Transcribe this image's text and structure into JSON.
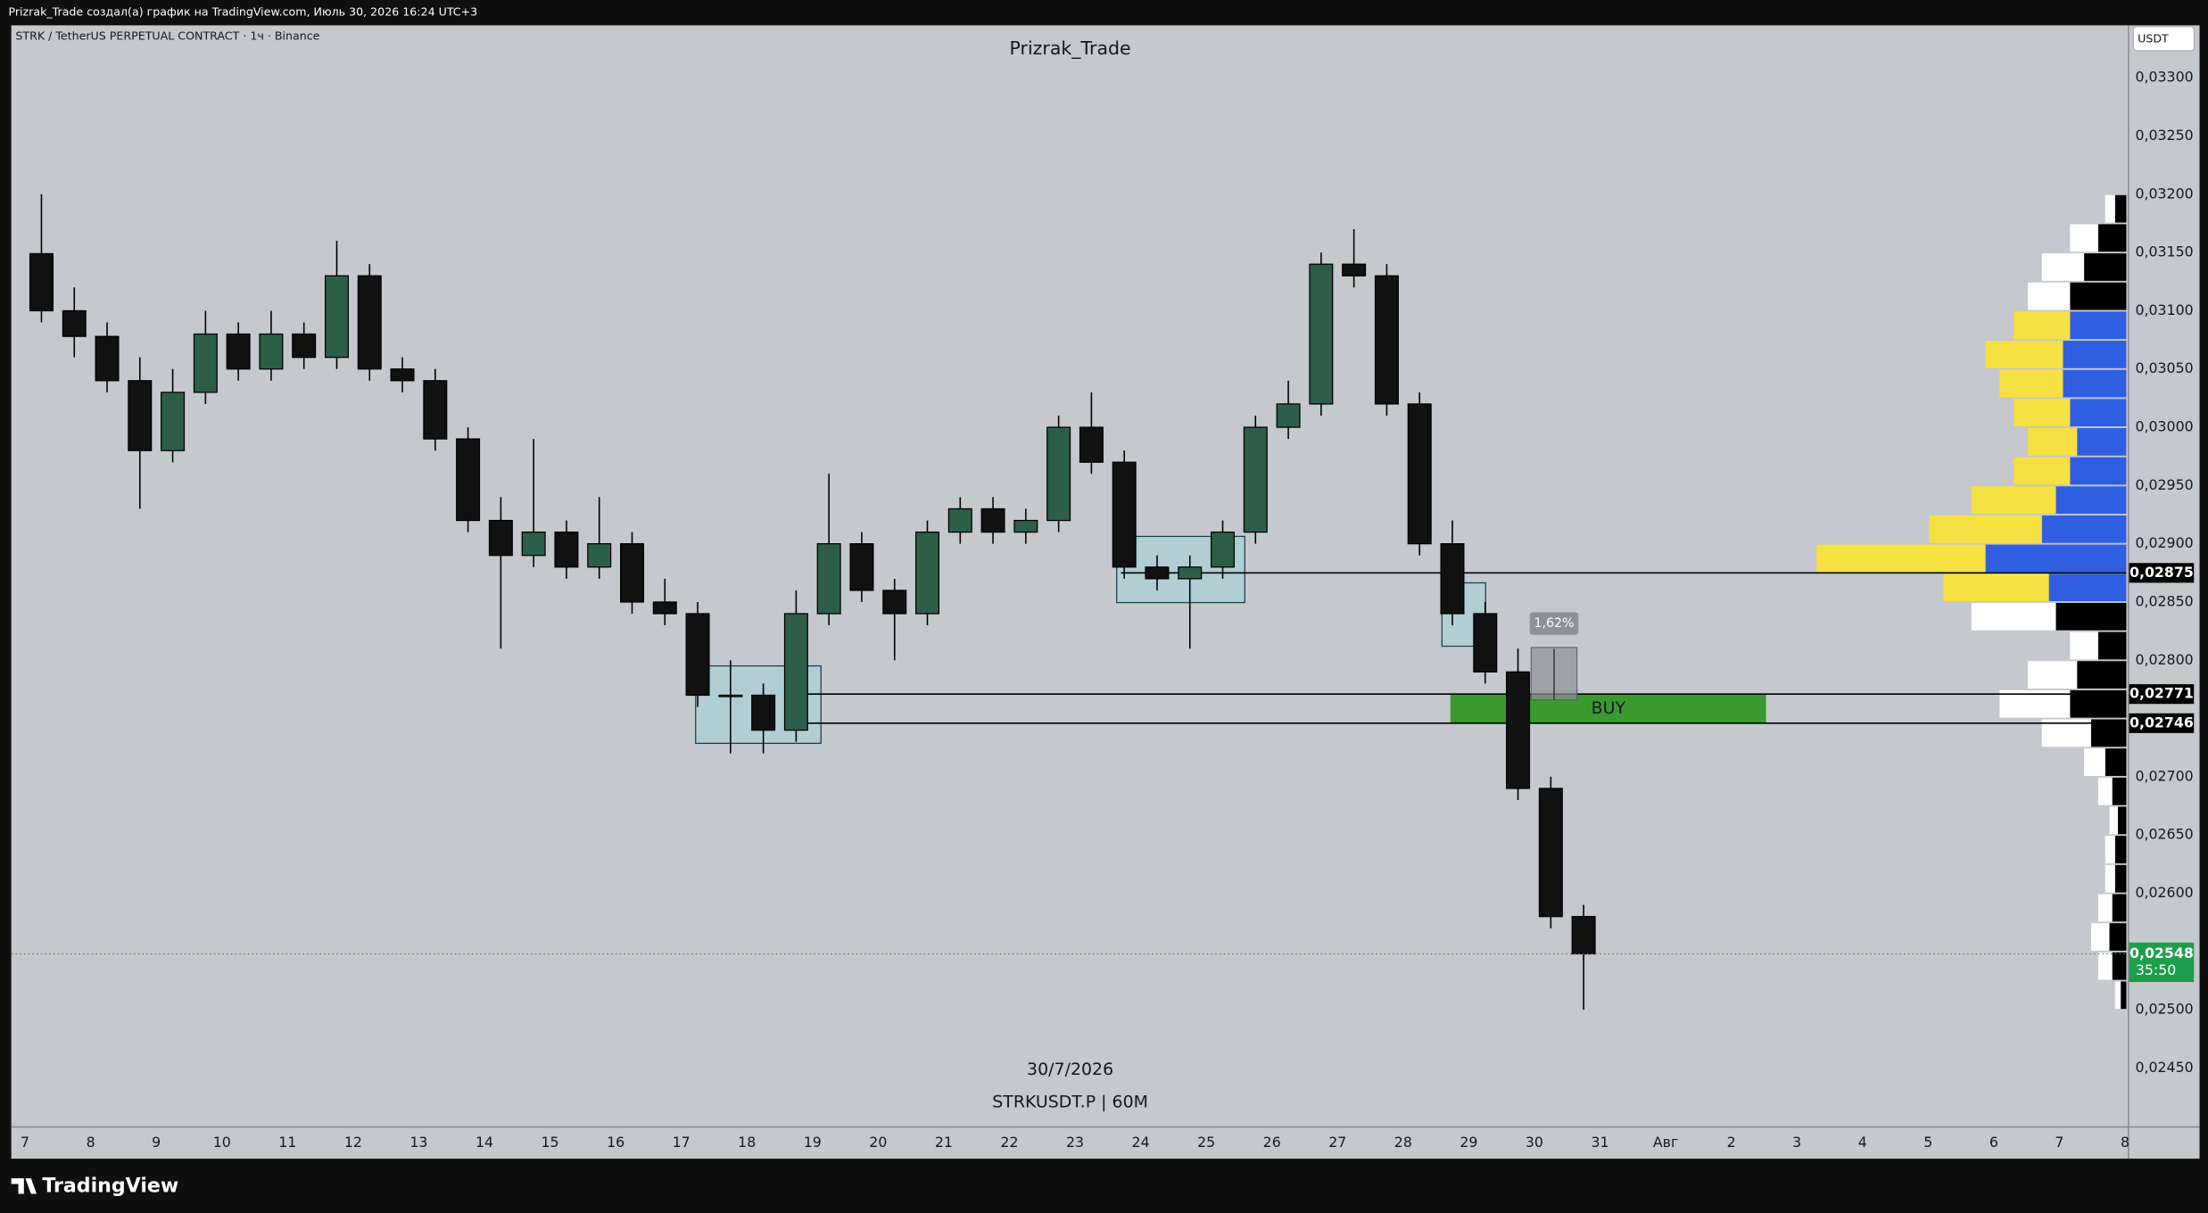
{
  "header": {
    "caption": "Prizrak_Trade создал(а) график на TradingView.com, Июль 30, 2026 16:24 UTC+3",
    "symbol": "STRK / TetherUS PERPETUAL CONTRACT · 1ч · Binance",
    "currency": "USDT"
  },
  "footer": {
    "brand": "TradingView"
  },
  "chart_data": {
    "type": "candlestick",
    "title": "Prizrak_Trade",
    "annotations": [
      "30/7/2026",
      "STRKUSDT.P | 60M"
    ],
    "x": [
      7,
      7.5,
      8,
      8.5,
      9,
      9.5,
      10,
      10.5,
      11,
      11.5,
      12,
      12.5,
      13,
      13.5,
      14,
      14.5,
      15,
      15.5,
      16,
      16.5,
      17,
      17.5,
      18,
      18.5,
      19,
      19.5,
      20,
      20.5,
      21,
      21.5,
      22,
      22.5,
      23,
      23.5,
      24,
      24.5,
      25,
      25.5,
      26,
      26.5,
      27,
      27.5,
      28,
      28.5,
      29,
      29.5,
      30,
      30.5
    ],
    "open": [
      0.03149,
      0.031,
      0.03078,
      0.0304,
      0.0298,
      0.0303,
      0.0308,
      0.0305,
      0.0308,
      0.0306,
      0.0313,
      0.0305,
      0.0304,
      0.0299,
      0.0292,
      0.0289,
      0.0291,
      0.0288,
      0.029,
      0.0285,
      0.0284,
      0.0277,
      0.0277,
      0.0274,
      0.0284,
      0.029,
      0.0286,
      0.0284,
      0.0291,
      0.0293,
      0.0291,
      0.0292,
      0.03,
      0.0297,
      0.0288,
      0.0287,
      0.0288,
      0.0291,
      0.03,
      0.0302,
      0.0314,
      0.0313,
      0.0302,
      0.029,
      0.0284,
      0.0279,
      0.0269,
      0.0258
    ],
    "high": [
      0.032,
      0.0312,
      0.0309,
      0.0306,
      0.0305,
      0.031,
      0.0309,
      0.031,
      0.0309,
      0.0316,
      0.0314,
      0.0306,
      0.0305,
      0.03,
      0.0294,
      0.0299,
      0.0292,
      0.0294,
      0.0291,
      0.0287,
      0.0285,
      0.028,
      0.0278,
      0.0286,
      0.0296,
      0.0291,
      0.0287,
      0.0292,
      0.0294,
      0.0294,
      0.0293,
      0.0301,
      0.0303,
      0.0298,
      0.0289,
      0.0289,
      0.0292,
      0.0301,
      0.0304,
      0.0315,
      0.0317,
      0.0314,
      0.0303,
      0.0292,
      0.0285,
      0.0281,
      0.027,
      0.0259
    ],
    "low": [
      0.0309,
      0.0306,
      0.0303,
      0.0293,
      0.0297,
      0.0302,
      0.0304,
      0.0304,
      0.0305,
      0.0305,
      0.0304,
      0.0303,
      0.0298,
      0.0291,
      0.0281,
      0.0288,
      0.0287,
      0.0287,
      0.0284,
      0.0283,
      0.0276,
      0.0272,
      0.0272,
      0.0273,
      0.0283,
      0.0285,
      0.028,
      0.0283,
      0.029,
      0.029,
      0.029,
      0.0291,
      0.0296,
      0.0287,
      0.0286,
      0.0281,
      0.0287,
      0.029,
      0.0299,
      0.0301,
      0.0312,
      0.0301,
      0.0289,
      0.0283,
      0.0278,
      0.0268,
      0.0257,
      0.025
    ],
    "close": [
      0.031,
      0.03078,
      0.0304,
      0.0298,
      0.0303,
      0.0308,
      0.0305,
      0.0308,
      0.0306,
      0.0313,
      0.0305,
      0.0304,
      0.0299,
      0.0292,
      0.0289,
      0.0291,
      0.0288,
      0.029,
      0.0285,
      0.0284,
      0.0277,
      0.0277,
      0.0274,
      0.0284,
      0.029,
      0.0286,
      0.0284,
      0.0291,
      0.0293,
      0.0291,
      0.0292,
      0.03,
      0.0297,
      0.0288,
      0.0287,
      0.0288,
      0.0291,
      0.03,
      0.0302,
      0.0314,
      0.0313,
      0.0302,
      0.029,
      0.0284,
      0.0279,
      0.0269,
      0.0258,
      0.02548
    ],
    "up_color": "#2d5e48",
    "down_color": "#111111",
    "xlim": [
      6.79,
      39.02
    ],
    "xticks": [
      7,
      8,
      9,
      10,
      11,
      12,
      13,
      14,
      15,
      16,
      17,
      18,
      19,
      20,
      21,
      22,
      23,
      24,
      25,
      26,
      27,
      28,
      29,
      30,
      31,
      {
        "value": 32,
        "label": "Авг"
      },
      {
        "value": 33,
        "label": "2"
      },
      {
        "value": 34,
        "label": "3"
      },
      {
        "value": 35,
        "label": "4"
      },
      {
        "value": 36,
        "label": "5"
      },
      {
        "value": 37,
        "label": "6"
      },
      {
        "value": 38,
        "label": "7"
      },
      {
        "value": 39,
        "label": "8"
      }
    ],
    "ylim": [
      0.024,
      0.03345
    ],
    "yticks": [
      {
        "value": 0.033,
        "label": "0,03300"
      },
      {
        "value": 0.0325,
        "label": "0,03250"
      },
      {
        "value": 0.032,
        "label": "0,03200"
      },
      {
        "value": 0.0315,
        "label": "0,03150"
      },
      {
        "value": 0.031,
        "label": "0,03100"
      },
      {
        "value": 0.0305,
        "label": "0,03050"
      },
      {
        "value": 0.03,
        "label": "0,03000"
      },
      {
        "value": 0.0295,
        "label": "0,02950"
      },
      {
        "value": 0.029,
        "label": "0,02900"
      },
      {
        "value": 0.0285,
        "label": "0,02850"
      },
      {
        "value": 0.028,
        "label": "0,02800"
      },
      {
        "value": 0.027,
        "label": "0,02700"
      },
      {
        "value": 0.0265,
        "label": "0,02650"
      },
      {
        "value": 0.026,
        "label": "0,02600"
      },
      {
        "value": 0.025,
        "label": "0,02500"
      },
      {
        "value": 0.0245,
        "label": "0,02450"
      }
    ],
    "grid": false,
    "levels": [
      {
        "value": 0.02875,
        "label": "0,02875",
        "start": 23.7
      },
      {
        "value": 0.02771,
        "label": "0,02771",
        "start": 18.9
      },
      {
        "value": 0.02746,
        "label": "0,02746",
        "start": 18.9
      }
    ],
    "zone": {
      "label": "BUY",
      "from": 28.72,
      "to": 33.53,
      "low": 0.02746,
      "high": 0.02771,
      "color": "#3a9a2e"
    },
    "measure": {
      "label": "1,62%",
      "from": 29.95,
      "to": 30.65,
      "low": 0.02766,
      "high": 0.02811
    },
    "last_price": {
      "value": 0.02548,
      "label": "0,02548",
      "countdown": "35:50",
      "color": "#1e9e4a"
    },
    "volume_profile": {
      "prices": [
        0.025,
        0.02525,
        0.0255,
        0.02575,
        0.026,
        0.02625,
        0.0265,
        0.02675,
        0.027,
        0.02725,
        0.0275,
        0.02775,
        0.028,
        0.02825,
        0.0285,
        0.02875,
        0.029,
        0.02925,
        0.0295,
        0.02975,
        0.03,
        0.03025,
        0.0305,
        0.03075,
        0.031,
        0.03125,
        0.0315,
        0.03175
      ],
      "up": [
        4,
        10,
        12,
        10,
        8,
        8,
        6,
        10,
        15,
        25,
        40,
        35,
        20,
        50,
        55,
        100,
        60,
        50,
        40,
        35,
        40,
        45,
        45,
        40,
        40,
        30,
        20,
        8
      ],
      "down": [
        4,
        10,
        13,
        10,
        7,
        7,
        6,
        10,
        15,
        35,
        50,
        35,
        20,
        60,
        75,
        120,
        80,
        60,
        40,
        35,
        40,
        45,
        55,
        40,
        30,
        30,
        20,
        7
      ],
      "value_area": [
        0.0285,
        0.031
      ],
      "colors": {
        "up_va": "#2f5fe0",
        "down_va": "#f5e142",
        "up": "#000000",
        "down": "#ffffff"
      }
    }
  }
}
